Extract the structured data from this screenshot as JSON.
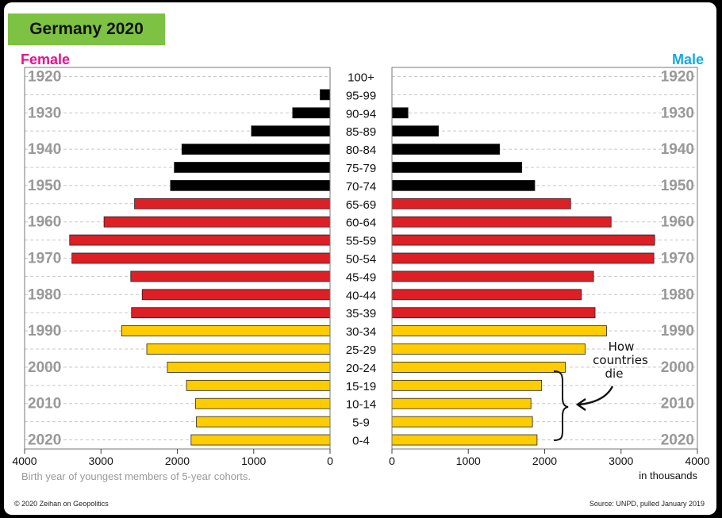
{
  "title": "Germany 2020",
  "female_label": "Female",
  "male_label": "Male",
  "axis_note": "Birth year of youngest members of 5-year cohorts.",
  "units_note": "in thousands",
  "copyright": "© 2020 Zeihan on Geopolitics",
  "source": "Source: UNPD, pulled January 2019",
  "annotation": [
    "How",
    "countries",
    "die"
  ],
  "colors": {
    "title_bg": "#7dc242",
    "female": "#e4138c",
    "male": "#17a9e1",
    "black": "#000000",
    "red": "#dd1f26",
    "gold": "#ffcc00",
    "year_label": "#999999",
    "grid": "#c8c8c8"
  },
  "chart_data": {
    "type": "bar",
    "orientation": "horizontal",
    "xlim": [
      0,
      4000
    ],
    "x_ticks": [
      4000,
      3000,
      2000,
      1000,
      0
    ],
    "male_x_ticks": [
      0,
      1000,
      2000,
      3000,
      4000
    ],
    "categories": [
      "100+",
      "95-99",
      "90-94",
      "85-89",
      "80-84",
      "75-79",
      "70-74",
      "65-69",
      "60-64",
      "55-59",
      "50-54",
      "45-49",
      "40-44",
      "35-39",
      "30-34",
      "25-29",
      "20-24",
      "15-19",
      "10-14",
      "5-9",
      "0-4"
    ],
    "series": [
      {
        "name": "Female",
        "values": [
          0,
          130,
          490,
          1030,
          1940,
          2040,
          2090,
          2560,
          2960,
          3410,
          3380,
          2610,
          2460,
          2600,
          2730,
          2400,
          2130,
          1880,
          1760,
          1750,
          1820
        ]
      },
      {
        "name": "Male",
        "values": [
          0,
          0,
          210,
          610,
          1410,
          1700,
          1870,
          2340,
          2870,
          3440,
          3430,
          2640,
          2480,
          2660,
          2810,
          2530,
          2270,
          1960,
          1820,
          1840,
          1900
        ]
      }
    ],
    "bar_colors": [
      "black",
      "black",
      "black",
      "black",
      "black",
      "black",
      "black",
      "red",
      "red",
      "red",
      "red",
      "red",
      "red",
      "red",
      "gold",
      "gold",
      "gold",
      "gold",
      "gold",
      "gold",
      "gold"
    ],
    "year_labels": [
      "1920",
      "1930",
      "1940",
      "1950",
      "1960",
      "1970",
      "1980",
      "1990",
      "2000",
      "2010",
      "2020"
    ],
    "grid": true
  }
}
